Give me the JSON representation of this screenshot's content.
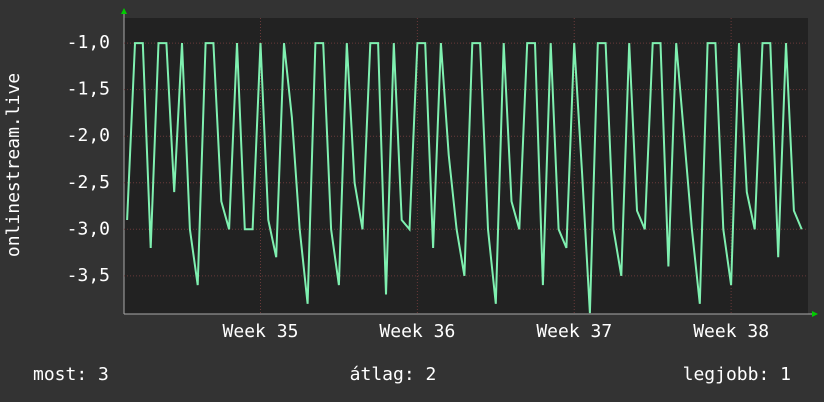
{
  "chart_data": {
    "type": "line",
    "ylabel": "onlinestream.live",
    "x": [
      34.15,
      34.2,
      34.25,
      34.3,
      34.35,
      34.4,
      34.45,
      34.5,
      34.55,
      34.6,
      34.65,
      34.7,
      34.75,
      34.8,
      34.85,
      34.9,
      34.95,
      35.0,
      35.05,
      35.1,
      35.15,
      35.2,
      35.25,
      35.3,
      35.35,
      35.4,
      35.45,
      35.5,
      35.55,
      35.6,
      35.65,
      35.7,
      35.75,
      35.8,
      35.85,
      35.9,
      35.95,
      36.0,
      36.05,
      36.1,
      36.15,
      36.2,
      36.25,
      36.3,
      36.35,
      36.4,
      36.45,
      36.5,
      36.55,
      36.6,
      36.65,
      36.7,
      36.75,
      36.8,
      36.85,
      36.9,
      36.95,
      37.0,
      37.05,
      37.1,
      37.15,
      37.2,
      37.25,
      37.3,
      37.35,
      37.4,
      37.45,
      37.5,
      37.55,
      37.6,
      37.65,
      37.7,
      37.75,
      37.8,
      37.85,
      37.9,
      37.95,
      38.0,
      38.05,
      38.1,
      38.15,
      38.2,
      38.25,
      38.3,
      38.35,
      38.4,
      38.45
    ],
    "values": [
      -2.9,
      -1,
      -1,
      -3.2,
      -1,
      -1,
      -2.6,
      -1,
      -3,
      -3.6,
      -1,
      -1,
      -2.7,
      -3,
      -1,
      -3,
      -3,
      -1,
      -2.9,
      -3.3,
      -1,
      -1.8,
      -3,
      -3.8,
      -1,
      -1,
      -3,
      -3.6,
      -1,
      -2.5,
      -3,
      -1,
      -1,
      -3.7,
      -1,
      -2.9,
      -3,
      -1,
      -1,
      -3.2,
      -1,
      -2.2,
      -3,
      -3.5,
      -1,
      -1,
      -3,
      -3.8,
      -1,
      -2.7,
      -3,
      -1,
      -1,
      -3.6,
      -1,
      -3,
      -3.2,
      -1,
      -2.4,
      -3.9,
      -1,
      -1,
      -3,
      -3.5,
      -1,
      -2.8,
      -3,
      -1,
      -1,
      -3.4,
      -1,
      -2,
      -3,
      -3.8,
      -1,
      -1,
      -3,
      -3.6,
      -1,
      -2.6,
      -3,
      -1,
      -1,
      -3.3,
      -1,
      -2.8,
      -3
    ],
    "color": "#7ff0b0",
    "xlim": [
      34.13,
      38.49
    ],
    "xticks": [
      {
        "value": 35,
        "label": "Week 35"
      },
      {
        "value": 36,
        "label": "Week 36"
      },
      {
        "value": 37,
        "label": "Week 37"
      },
      {
        "value": 38,
        "label": "Week 38"
      }
    ],
    "ylim": [
      -3.91,
      -0.73
    ],
    "yticks": [
      {
        "value": -1,
        "label": "-1,0"
      },
      {
        "value": -1.5,
        "label": "-1,5"
      },
      {
        "value": -2,
        "label": "-2,0"
      },
      {
        "value": -2.5,
        "label": "-2,5"
      },
      {
        "value": -3,
        "label": "-3,0"
      },
      {
        "value": -3.5,
        "label": "-3,5"
      }
    ],
    "grid": true,
    "footer": [
      "most: 3",
      "átlag: 2",
      "legjobb: 1"
    ]
  }
}
